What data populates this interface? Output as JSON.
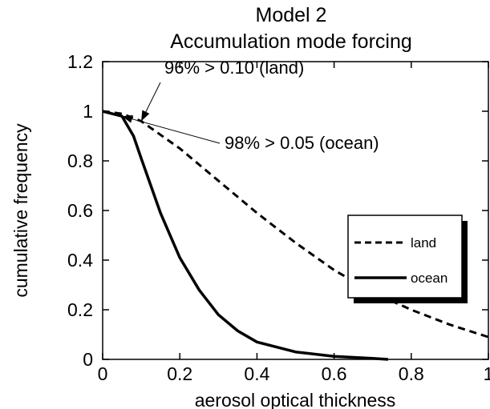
{
  "chart_data": {
    "type": "line",
    "title": [
      "Model 2",
      "Accumulation mode forcing"
    ],
    "xlabel": "aerosol optical thickness",
    "ylabel": "cumulative frequency",
    "xlim": [
      0,
      1
    ],
    "ylim": [
      0,
      1.2
    ],
    "x_ticks": [
      0,
      0.2,
      0.4,
      0.6,
      0.8,
      1
    ],
    "x_tick_labels": [
      "0",
      "0.2",
      "0.4",
      "0.6",
      "0.8",
      "1"
    ],
    "y_ticks": [
      0,
      0.2,
      0.4,
      0.6,
      0.8,
      1,
      1.2
    ],
    "y_tick_labels": [
      "0",
      "0.2",
      "0.4",
      "0.6",
      "0.8",
      "1",
      "1.2"
    ],
    "grid": false,
    "legend_position": "right",
    "series": [
      {
        "name": "land",
        "style": "dashed",
        "color": "#000000",
        "x": [
          0,
          0.05,
          0.1,
          0.2,
          0.3,
          0.4,
          0.5,
          0.6,
          0.7,
          0.8,
          0.9,
          1.0
        ],
        "y": [
          1.0,
          0.99,
          0.96,
          0.85,
          0.72,
          0.59,
          0.47,
          0.36,
          0.27,
          0.2,
          0.14,
          0.09
        ]
      },
      {
        "name": "ocean",
        "style": "solid",
        "color": "#000000",
        "x": [
          0,
          0.05,
          0.08,
          0.1,
          0.125,
          0.15,
          0.2,
          0.25,
          0.3,
          0.35,
          0.4,
          0.5,
          0.6,
          0.7,
          0.74
        ],
        "y": [
          1.0,
          0.98,
          0.9,
          0.81,
          0.7,
          0.59,
          0.41,
          0.28,
          0.18,
          0.115,
          0.07,
          0.03,
          0.012,
          0.004,
          0.0
        ]
      }
    ],
    "annotations": [
      {
        "text": "96% > 0.10 (land)",
        "x": 0.1,
        "y": 0.96
      },
      {
        "text": "98% > 0.05 (ocean)",
        "x": 0.05,
        "y": 0.98
      }
    ]
  }
}
